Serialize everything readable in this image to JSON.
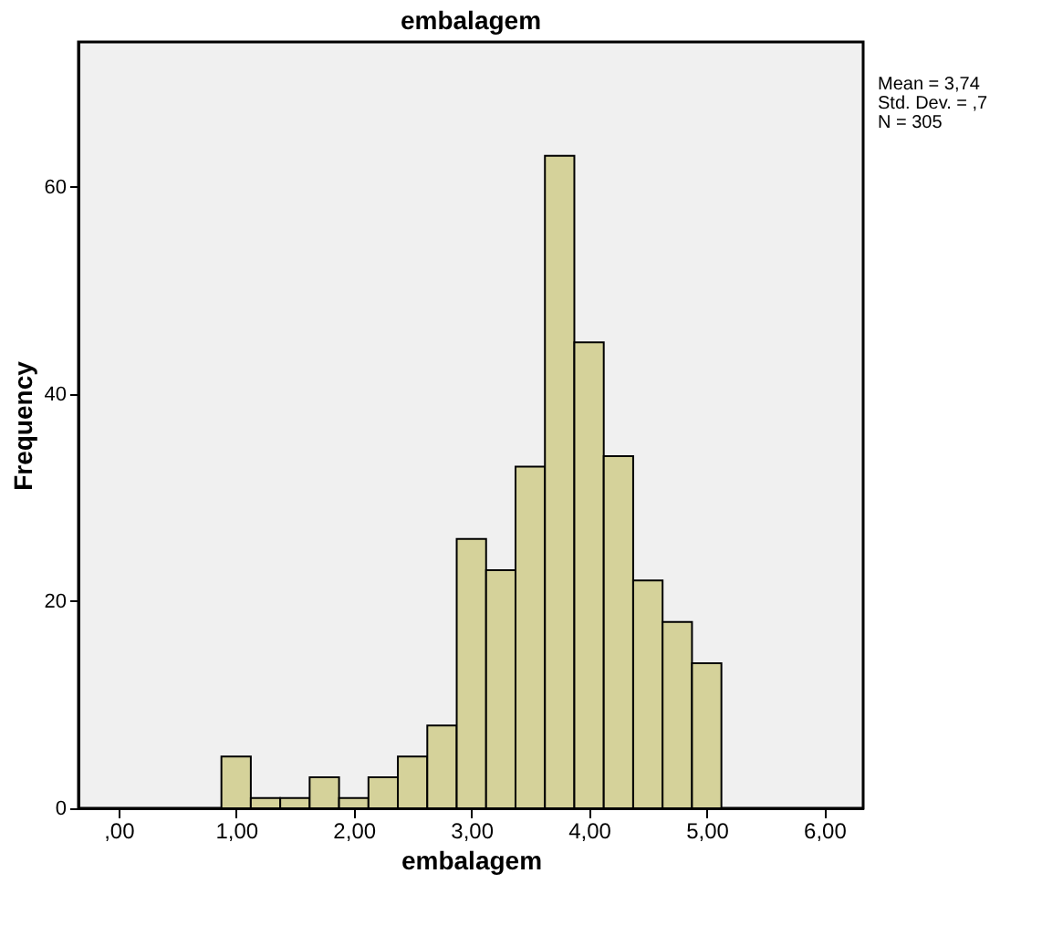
{
  "chart_data": {
    "type": "histogram",
    "title": "embalagem",
    "xlabel": "embalagem",
    "ylabel": "Frequency",
    "bins": [
      0.875,
      1.125,
      1.375,
      1.625,
      1.875,
      2.125,
      2.375,
      2.625,
      2.875,
      3.125,
      3.375,
      3.625,
      3.875,
      4.125,
      4.375,
      4.625,
      4.875,
      5.125
    ],
    "values": [
      5,
      1,
      1,
      3,
      1,
      3,
      5,
      8,
      26,
      23,
      33,
      63,
      45,
      34,
      22,
      18,
      14
    ],
    "color": "#d5d29a",
    "xlim": [
      -0.34,
      6.33
    ],
    "ylim": [
      0,
      74
    ],
    "xticks": [
      {
        "value": 0,
        "label": ",00"
      },
      {
        "value": 1,
        "label": "1,00"
      },
      {
        "value": 2,
        "label": "2,00"
      },
      {
        "value": 3,
        "label": "3,00"
      },
      {
        "value": 4,
        "label": "4,00"
      },
      {
        "value": 5,
        "label": "5,00"
      },
      {
        "value": 6,
        "label": "6,00"
      }
    ],
    "yticks": [
      0,
      20,
      40,
      60
    ],
    "grid": false,
    "annotations": [
      "Mean = 3,74",
      "Std. Dev. = ,7",
      "N = 305"
    ]
  }
}
